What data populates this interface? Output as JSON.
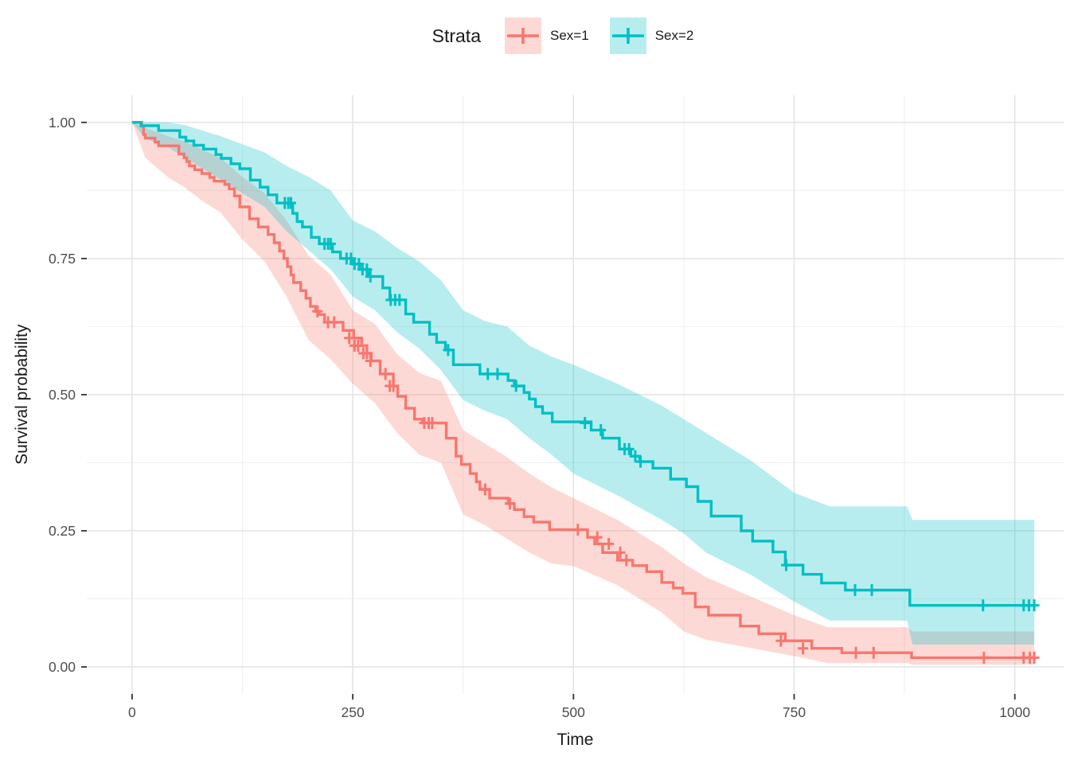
{
  "chart_data": {
    "type": "line",
    "subtype": "kaplan-meier-step-survival",
    "title": "",
    "xlabel": "Time",
    "ylabel": "Survival probability",
    "xlim": [
      0,
      1022
    ],
    "ylim": [
      0,
      1
    ],
    "grid": true,
    "xticks": {
      "major": [
        0,
        250,
        500,
        750,
        1000
      ],
      "minor": [
        125,
        375,
        625,
        875
      ]
    },
    "yticks": {
      "major": [
        0,
        0.25,
        0.5,
        0.75,
        1
      ],
      "minor": [
        0.125,
        0.375,
        0.625,
        0.875
      ]
    },
    "xtick_labels": [
      "0",
      "250",
      "500",
      "750",
      "1000"
    ],
    "ytick_labels": [
      "0.00",
      "0.25",
      "0.50",
      "0.75",
      "1.00"
    ],
    "legend": {
      "title": "Strata",
      "position": "top"
    },
    "tick_label_color": "#4d4d4d",
    "axis_title_color": "#1a1a1a",
    "series": [
      {
        "name": "Sex=1",
        "color": "#F8766D",
        "band_color": "rgba(248,118,109,0.28)",
        "steps": [
          [
            0,
            1.0
          ],
          [
            11,
            0.993
          ],
          [
            13,
            0.978
          ],
          [
            15,
            0.971
          ],
          [
            26,
            0.964
          ],
          [
            30,
            0.957
          ],
          [
            53,
            0.942
          ],
          [
            59,
            0.935
          ],
          [
            62,
            0.928
          ],
          [
            65,
            0.92
          ],
          [
            71,
            0.913
          ],
          [
            79,
            0.906
          ],
          [
            88,
            0.899
          ],
          [
            93,
            0.892
          ],
          [
            105,
            0.886
          ],
          [
            110,
            0.878
          ],
          [
            116,
            0.865
          ],
          [
            122,
            0.845
          ],
          [
            133,
            0.823
          ],
          [
            143,
            0.808
          ],
          [
            154,
            0.794
          ],
          [
            161,
            0.779
          ],
          [
            167,
            0.764
          ],
          [
            172,
            0.75
          ],
          [
            176,
            0.735
          ],
          [
            180,
            0.72
          ],
          [
            183,
            0.706
          ],
          [
            191,
            0.691
          ],
          [
            197,
            0.677
          ],
          [
            202,
            0.662
          ],
          [
            208,
            0.653
          ],
          [
            212,
            0.647
          ],
          [
            218,
            0.633
          ],
          [
            239,
            0.618
          ],
          [
            251,
            0.604
          ],
          [
            260,
            0.59
          ],
          [
            266,
            0.576
          ],
          [
            271,
            0.562
          ],
          [
            281,
            0.538
          ],
          [
            296,
            0.516
          ],
          [
            301,
            0.497
          ],
          [
            310,
            0.475
          ],
          [
            320,
            0.455
          ],
          [
            329,
            0.448
          ],
          [
            356,
            0.42
          ],
          [
            367,
            0.387
          ],
          [
            373,
            0.372
          ],
          [
            383,
            0.355
          ],
          [
            390,
            0.34
          ],
          [
            394,
            0.326
          ],
          [
            405,
            0.31
          ],
          [
            426,
            0.3
          ],
          [
            433,
            0.289
          ],
          [
            444,
            0.276
          ],
          [
            455,
            0.266
          ],
          [
            473,
            0.252
          ],
          [
            516,
            0.238
          ],
          [
            524,
            0.226
          ],
          [
            533,
            0.21
          ],
          [
            550,
            0.196
          ],
          [
            567,
            0.186
          ],
          [
            583,
            0.175
          ],
          [
            600,
            0.155
          ],
          [
            613,
            0.145
          ],
          [
            624,
            0.135
          ],
          [
            638,
            0.11
          ],
          [
            653,
            0.095
          ],
          [
            689,
            0.075
          ],
          [
            710,
            0.061
          ],
          [
            740,
            0.048
          ],
          [
            770,
            0.034
          ],
          [
            804,
            0.026
          ],
          [
            883,
            0.017
          ],
          [
            1022,
            0.017
          ]
        ],
        "censors": [
          [
            210,
            0.653
          ],
          [
            222,
            0.633
          ],
          [
            229,
            0.633
          ],
          [
            246,
            0.604
          ],
          [
            252,
            0.59
          ],
          [
            256,
            0.59
          ],
          [
            262,
            0.576
          ],
          [
            266,
            0.576
          ],
          [
            270,
            0.562
          ],
          [
            287,
            0.538
          ],
          [
            292,
            0.516
          ],
          [
            296,
            0.516
          ],
          [
            331,
            0.448
          ],
          [
            336,
            0.448
          ],
          [
            340,
            0.448
          ],
          [
            400,
            0.326
          ],
          [
            428,
            0.3
          ],
          [
            505,
            0.252
          ],
          [
            527,
            0.238
          ],
          [
            540,
            0.226
          ],
          [
            553,
            0.21
          ],
          [
            560,
            0.196
          ],
          [
            735,
            0.048
          ],
          [
            760,
            0.034
          ],
          [
            820,
            0.026
          ],
          [
            840,
            0.026
          ],
          [
            965,
            0.017
          ],
          [
            1010,
            0.017
          ],
          [
            1017,
            0.017
          ],
          [
            1022,
            0.017
          ]
        ],
        "band": [
          [
            0,
            1.0,
            1.0
          ],
          [
            15,
            0.935,
            0.99
          ],
          [
            40,
            0.9,
            0.975
          ],
          [
            60,
            0.88,
            0.965
          ],
          [
            80,
            0.855,
            0.95
          ],
          [
            100,
            0.835,
            0.935
          ],
          [
            125,
            0.785,
            0.9
          ],
          [
            150,
            0.745,
            0.87
          ],
          [
            175,
            0.68,
            0.82
          ],
          [
            200,
            0.6,
            0.755
          ],
          [
            225,
            0.565,
            0.72
          ],
          [
            250,
            0.52,
            0.655
          ],
          [
            275,
            0.485,
            0.63
          ],
          [
            300,
            0.43,
            0.575
          ],
          [
            325,
            0.39,
            0.54
          ],
          [
            350,
            0.375,
            0.525
          ],
          [
            375,
            0.28,
            0.435
          ],
          [
            400,
            0.26,
            0.41
          ],
          [
            425,
            0.235,
            0.385
          ],
          [
            450,
            0.21,
            0.355
          ],
          [
            475,
            0.19,
            0.33
          ],
          [
            500,
            0.185,
            0.31
          ],
          [
            550,
            0.15,
            0.27
          ],
          [
            600,
            0.1,
            0.22
          ],
          [
            625,
            0.065,
            0.19
          ],
          [
            650,
            0.05,
            0.165
          ],
          [
            700,
            0.035,
            0.13
          ],
          [
            750,
            0.02,
            0.095
          ],
          [
            788,
            0.007,
            0.073
          ],
          [
            878,
            0.007,
            0.073
          ],
          [
            884,
            0.004,
            0.065
          ],
          [
            1022,
            0.004,
            0.065
          ]
        ]
      },
      {
        "name": "Sex=2",
        "color": "#00BFC4",
        "band_color": "rgba(0,191,196,0.28)",
        "steps": [
          [
            0,
            1.0
          ],
          [
            10,
            0.994
          ],
          [
            30,
            0.985
          ],
          [
            54,
            0.973
          ],
          [
            61,
            0.966
          ],
          [
            70,
            0.958
          ],
          [
            81,
            0.951
          ],
          [
            95,
            0.941
          ],
          [
            101,
            0.934
          ],
          [
            112,
            0.924
          ],
          [
            122,
            0.915
          ],
          [
            134,
            0.894
          ],
          [
            145,
            0.881
          ],
          [
            154,
            0.867
          ],
          [
            164,
            0.852
          ],
          [
            182,
            0.833
          ],
          [
            187,
            0.818
          ],
          [
            193,
            0.808
          ],
          [
            203,
            0.789
          ],
          [
            212,
            0.777
          ],
          [
            227,
            0.762
          ],
          [
            236,
            0.75
          ],
          [
            250,
            0.74
          ],
          [
            258,
            0.73
          ],
          [
            268,
            0.717
          ],
          [
            284,
            0.696
          ],
          [
            292,
            0.674
          ],
          [
            310,
            0.648
          ],
          [
            319,
            0.633
          ],
          [
            337,
            0.611
          ],
          [
            345,
            0.596
          ],
          [
            355,
            0.582
          ],
          [
            364,
            0.555
          ],
          [
            394,
            0.538
          ],
          [
            426,
            0.526
          ],
          [
            433,
            0.516
          ],
          [
            444,
            0.504
          ],
          [
            450,
            0.492
          ],
          [
            457,
            0.478
          ],
          [
            465,
            0.466
          ],
          [
            476,
            0.45
          ],
          [
            520,
            0.435
          ],
          [
            533,
            0.42
          ],
          [
            552,
            0.4
          ],
          [
            565,
            0.387
          ],
          [
            575,
            0.377
          ],
          [
            590,
            0.365
          ],
          [
            610,
            0.345
          ],
          [
            628,
            0.331
          ],
          [
            641,
            0.304
          ],
          [
            656,
            0.277
          ],
          [
            690,
            0.25
          ],
          [
            703,
            0.231
          ],
          [
            726,
            0.211
          ],
          [
            740,
            0.187
          ],
          [
            760,
            0.17
          ],
          [
            781,
            0.154
          ],
          [
            808,
            0.141
          ],
          [
            881,
            0.113
          ],
          [
            1022,
            0.113
          ]
        ],
        "censors": [
          [
            173,
            0.852
          ],
          [
            177,
            0.852
          ],
          [
            180,
            0.852
          ],
          [
            218,
            0.777
          ],
          [
            222,
            0.777
          ],
          [
            225,
            0.777
          ],
          [
            243,
            0.75
          ],
          [
            248,
            0.75
          ],
          [
            252,
            0.74
          ],
          [
            257,
            0.74
          ],
          [
            261,
            0.73
          ],
          [
            266,
            0.73
          ],
          [
            270,
            0.717
          ],
          [
            293,
            0.674
          ],
          [
            298,
            0.674
          ],
          [
            303,
            0.674
          ],
          [
            358,
            0.582
          ],
          [
            403,
            0.538
          ],
          [
            414,
            0.538
          ],
          [
            435,
            0.516
          ],
          [
            513,
            0.448
          ],
          [
            531,
            0.435
          ],
          [
            558,
            0.4
          ],
          [
            563,
            0.4
          ],
          [
            570,
            0.387
          ],
          [
            576,
            0.377
          ],
          [
            741,
            0.187
          ],
          [
            819,
            0.141
          ],
          [
            838,
            0.141
          ],
          [
            964,
            0.113
          ],
          [
            1010,
            0.113
          ],
          [
            1016,
            0.113
          ],
          [
            1022,
            0.113
          ]
        ],
        "band": [
          [
            0,
            1.0,
            1.0
          ],
          [
            15,
            0.97,
            1.0
          ],
          [
            40,
            0.955,
            1.0
          ],
          [
            60,
            0.935,
            0.995
          ],
          [
            80,
            0.915,
            0.985
          ],
          [
            100,
            0.895,
            0.975
          ],
          [
            125,
            0.87,
            0.96
          ],
          [
            150,
            0.845,
            0.945
          ],
          [
            175,
            0.8,
            0.92
          ],
          [
            200,
            0.765,
            0.9
          ],
          [
            225,
            0.73,
            0.875
          ],
          [
            250,
            0.68,
            0.82
          ],
          [
            275,
            0.655,
            0.8
          ],
          [
            300,
            0.615,
            0.77
          ],
          [
            325,
            0.585,
            0.745
          ],
          [
            350,
            0.545,
            0.71
          ],
          [
            375,
            0.49,
            0.655
          ],
          [
            400,
            0.47,
            0.635
          ],
          [
            425,
            0.455,
            0.625
          ],
          [
            450,
            0.42,
            0.59
          ],
          [
            475,
            0.39,
            0.57
          ],
          [
            500,
            0.355,
            0.555
          ],
          [
            550,
            0.315,
            0.52
          ],
          [
            600,
            0.27,
            0.48
          ],
          [
            625,
            0.245,
            0.455
          ],
          [
            650,
            0.21,
            0.43
          ],
          [
            700,
            0.17,
            0.38
          ],
          [
            750,
            0.12,
            0.32
          ],
          [
            790,
            0.085,
            0.295
          ],
          [
            878,
            0.085,
            0.295
          ],
          [
            884,
            0.041,
            0.27
          ],
          [
            1022,
            0.041,
            0.27
          ]
        ]
      }
    ]
  }
}
